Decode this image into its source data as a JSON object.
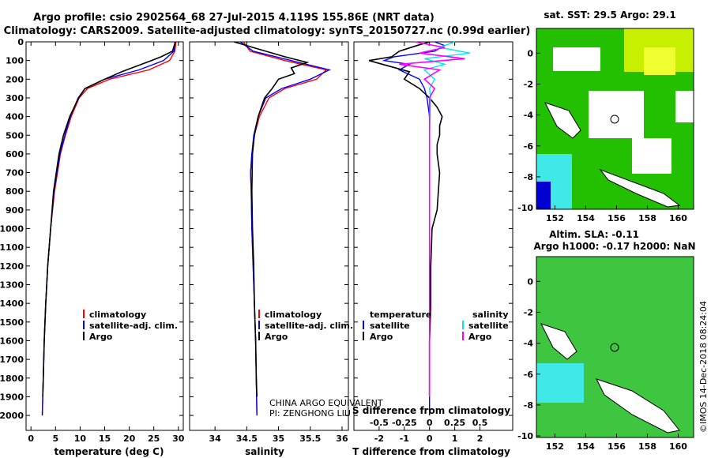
{
  "header": {
    "line1": "Argo profile: csio 2902564_68 27-Jul-2015 4.119S 155.86E (NRT data)",
    "line2": "Climatology: CARS2009. Satellite-adjusted climatology: synTS_20150727.nc (0.99d earlier)"
  },
  "colors": {
    "climatology": "#ff0000",
    "satellite": "#0000ff",
    "argo": "#000000",
    "sat_salinity": "#00e8e8",
    "clim_salinity": "#ff00ff"
  },
  "chart_data": [
    {
      "id": "temperature",
      "type": "line",
      "xlabel": "temperature (deg C)",
      "xlim": [
        -1,
        31
      ],
      "xticks": [
        0,
        5,
        10,
        15,
        20,
        25,
        30
      ],
      "ylim": [
        2080,
        0
      ],
      "yticks": [
        0,
        100,
        200,
        300,
        400,
        500,
        600,
        700,
        800,
        900,
        1000,
        1100,
        1200,
        1300,
        1400,
        1500,
        1600,
        1700,
        1800,
        1900,
        2000
      ],
      "legend": [
        "climatology",
        "satellite-adj. clim.",
        "Argo"
      ],
      "series": [
        {
          "name": "climatology",
          "depth": [
            0,
            50,
            100,
            150,
            200,
            250,
            300,
            400,
            500,
            600,
            800,
            1000,
            1200,
            1400,
            1600,
            1800,
            2000
          ],
          "values": [
            29.5,
            29.3,
            28.2,
            24.0,
            16.0,
            11.5,
            9.8,
            8.2,
            7.0,
            6.0,
            4.8,
            4.0,
            3.4,
            3.0,
            2.7,
            2.5,
            2.3
          ]
        },
        {
          "name": "satellite-adj. clim.",
          "depth": [
            0,
            50,
            100,
            150,
            200,
            250,
            300,
            400,
            500,
            600,
            800,
            1000,
            1200,
            1400,
            1600,
            1800,
            2000
          ],
          "values": [
            29.3,
            29.1,
            27.0,
            22.0,
            15.0,
            11.0,
            9.6,
            8.0,
            6.9,
            5.9,
            4.7,
            4.0,
            3.4,
            3.0,
            2.7,
            2.5,
            2.3
          ]
        },
        {
          "name": "Argo",
          "depth": [
            0,
            50,
            80,
            100,
            130,
            160,
            200,
            250,
            300,
            400,
            500,
            600,
            800,
            1000,
            1200,
            1400,
            1600,
            1800,
            1900
          ],
          "values": [
            29.4,
            28.8,
            26.5,
            24.5,
            21.5,
            18.5,
            15.0,
            11.0,
            9.7,
            7.9,
            6.6,
            5.7,
            4.6,
            4.0,
            3.4,
            3.0,
            2.7,
            2.5,
            2.4
          ]
        }
      ]
    },
    {
      "id": "salinity",
      "type": "line",
      "xlabel": "salinity",
      "xlim": [
        33.6,
        36.1
      ],
      "xticks": [
        34,
        34.5,
        35,
        35.5,
        36
      ],
      "ylim": [
        2080,
        0
      ],
      "legend": [
        "climatology",
        "satellite-adj. clim.",
        "Argo"
      ],
      "annotation": [
        "CHINA ARGO EQUIVALENT",
        "PI: ZENGHONG LIU"
      ],
      "series": [
        {
          "name": "climatology",
          "depth": [
            0,
            50,
            100,
            150,
            200,
            250,
            300,
            400,
            500,
            600,
            700,
            800,
            1000,
            1200,
            1400,
            1600,
            1800,
            2000
          ],
          "values": [
            34.45,
            34.55,
            35.1,
            35.75,
            35.6,
            35.1,
            34.85,
            34.7,
            34.62,
            34.58,
            34.56,
            34.57,
            34.58,
            34.6,
            34.62,
            34.64,
            34.65,
            34.66
          ]
        },
        {
          "name": "satellite-adj. clim.",
          "depth": [
            0,
            50,
            100,
            150,
            200,
            250,
            300,
            400,
            500,
            600,
            700,
            800,
            1000,
            1200,
            1400,
            1600,
            1800,
            2000
          ],
          "values": [
            34.4,
            34.6,
            35.2,
            35.8,
            35.5,
            35.05,
            34.8,
            34.68,
            34.61,
            34.58,
            34.56,
            34.57,
            34.58,
            34.6,
            34.62,
            34.64,
            34.65,
            34.66
          ]
        },
        {
          "name": "Argo",
          "depth": [
            0,
            40,
            80,
            110,
            140,
            170,
            200,
            250,
            300,
            400,
            500,
            600,
            800,
            1000,
            1200,
            1400,
            1600,
            1800,
            1900
          ],
          "values": [
            34.3,
            34.7,
            35.1,
            35.45,
            35.2,
            35.25,
            35.0,
            34.9,
            34.78,
            34.68,
            34.62,
            34.59,
            34.58,
            34.59,
            34.61,
            34.62,
            34.64,
            34.65,
            34.66
          ]
        }
      ]
    },
    {
      "id": "difference",
      "type": "line",
      "xlabel": "T difference from climatology",
      "xlabel_top": "S difference from climatology",
      "xlim": [
        -3,
        3.3
      ],
      "xticks": [
        -2,
        -1,
        0,
        1,
        2
      ],
      "xticks_salinity": [
        "-0.5",
        "-0.25",
        "0",
        "0.25",
        "0.5"
      ],
      "ylim": [
        2080,
        0
      ],
      "legend_temperature": {
        "title": "temperature",
        "items": [
          "satellite",
          "Argo"
        ]
      },
      "legend_salinity": {
        "title": "salinity",
        "items": [
          "satellite",
          "Argo"
        ]
      },
      "series": [
        {
          "name": "T satellite",
          "depth": [
            0,
            20,
            50,
            80,
            100,
            120,
            150,
            200,
            250,
            300,
            400,
            600,
            1000,
            1500,
            2000
          ],
          "values": [
            0.2,
            0.6,
            0.2,
            -1.4,
            -1.8,
            -0.8,
            -1.2,
            -0.4,
            -0.2,
            -0.1,
            0.0,
            0.0,
            0.0,
            0.0,
            0.0
          ]
        },
        {
          "name": "T Argo",
          "depth": [
            0,
            20,
            50,
            80,
            100,
            130,
            160,
            200,
            250,
            300,
            350,
            400,
            450,
            500,
            550,
            600,
            700,
            800,
            900,
            1000,
            1200,
            1400,
            1600,
            1800,
            1900
          ],
          "values": [
            0.0,
            -0.5,
            -1.2,
            -1.5,
            -2.4,
            -1.6,
            -0.8,
            -1.0,
            -0.4,
            0.0,
            0.3,
            0.5,
            0.4,
            0.4,
            0.3,
            0.3,
            0.4,
            0.35,
            0.3,
            0.1,
            0.05,
            0.05,
            0.0,
            0.0,
            0.0
          ]
        },
        {
          "name": "S satellite",
          "depth": [
            0,
            30,
            60,
            90,
            120,
            150,
            200,
            250,
            300,
            500,
            1000,
            1500,
            1900
          ],
          "values": [
            0.25,
            0.1,
            0.4,
            -0.05,
            0.15,
            -0.05,
            0.05,
            0.0,
            0.01,
            0.0,
            0.0,
            0.0,
            0.0
          ]
        },
        {
          "name": "S Argo",
          "depth": [
            0,
            30,
            60,
            90,
            120,
            150,
            200,
            250,
            300,
            500,
            1000,
            1500,
            1900
          ],
          "values": [
            -0.15,
            0.15,
            -0.1,
            0.35,
            -0.3,
            0.1,
            -0.05,
            0.05,
            0.0,
            0.0,
            0.0,
            0.0,
            0.0
          ]
        }
      ]
    }
  ],
  "maps": {
    "sst": {
      "title": "sat. SST: 29.5 Argo: 29.1",
      "xticks": [
        152,
        154,
        156,
        158,
        160
      ],
      "yticks": [
        0,
        -2,
        -4,
        -6,
        -8,
        -10
      ]
    },
    "sla": {
      "title_line1": "Altim. SLA: -0.11",
      "title_line2": "Argo h1000: -0.17 h2000: NaN",
      "xticks": [
        152,
        154,
        156,
        158,
        160
      ],
      "yticks": [
        0,
        -2,
        -4,
        -6,
        -8,
        -10
      ]
    }
  },
  "footer": {
    "credit": "©IMOS 14-Dec-2018 08:24:04"
  }
}
